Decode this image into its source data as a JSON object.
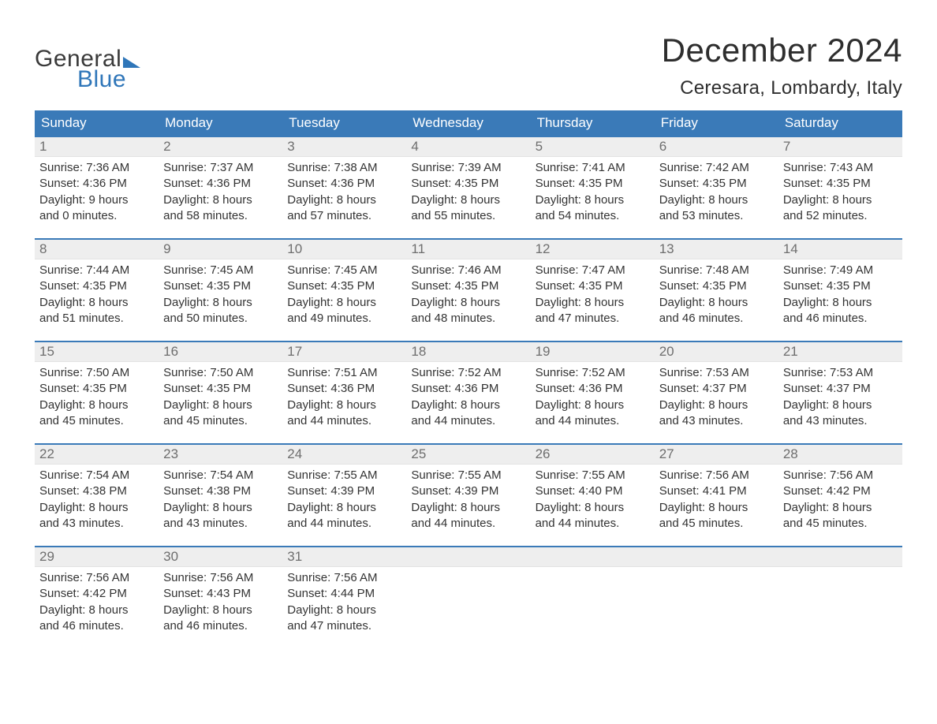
{
  "logo": {
    "line1": "General",
    "line2": "Blue"
  },
  "title": {
    "month": "December 2024",
    "location": "Ceresara, Lombardy, Italy"
  },
  "colors": {
    "header_bg": "#3a7ab8",
    "header_text": "#ffffff",
    "daynum_bg": "#eeeeee",
    "daynum_text": "#6e6e6e",
    "body_text": "#333333",
    "rule": "#3a7ab8",
    "logo_blue": "#2f76b9",
    "page_bg": "#ffffff"
  },
  "weekdays": [
    "Sunday",
    "Monday",
    "Tuesday",
    "Wednesday",
    "Thursday",
    "Friday",
    "Saturday"
  ],
  "weeks": [
    [
      {
        "n": "1",
        "sr": "Sunrise: 7:36 AM",
        "ss": "Sunset: 4:36 PM",
        "d1": "Daylight: 9 hours",
        "d2": "and 0 minutes."
      },
      {
        "n": "2",
        "sr": "Sunrise: 7:37 AM",
        "ss": "Sunset: 4:36 PM",
        "d1": "Daylight: 8 hours",
        "d2": "and 58 minutes."
      },
      {
        "n": "3",
        "sr": "Sunrise: 7:38 AM",
        "ss": "Sunset: 4:36 PM",
        "d1": "Daylight: 8 hours",
        "d2": "and 57 minutes."
      },
      {
        "n": "4",
        "sr": "Sunrise: 7:39 AM",
        "ss": "Sunset: 4:35 PM",
        "d1": "Daylight: 8 hours",
        "d2": "and 55 minutes."
      },
      {
        "n": "5",
        "sr": "Sunrise: 7:41 AM",
        "ss": "Sunset: 4:35 PM",
        "d1": "Daylight: 8 hours",
        "d2": "and 54 minutes."
      },
      {
        "n": "6",
        "sr": "Sunrise: 7:42 AM",
        "ss": "Sunset: 4:35 PM",
        "d1": "Daylight: 8 hours",
        "d2": "and 53 minutes."
      },
      {
        "n": "7",
        "sr": "Sunrise: 7:43 AM",
        "ss": "Sunset: 4:35 PM",
        "d1": "Daylight: 8 hours",
        "d2": "and 52 minutes."
      }
    ],
    [
      {
        "n": "8",
        "sr": "Sunrise: 7:44 AM",
        "ss": "Sunset: 4:35 PM",
        "d1": "Daylight: 8 hours",
        "d2": "and 51 minutes."
      },
      {
        "n": "9",
        "sr": "Sunrise: 7:45 AM",
        "ss": "Sunset: 4:35 PM",
        "d1": "Daylight: 8 hours",
        "d2": "and 50 minutes."
      },
      {
        "n": "10",
        "sr": "Sunrise: 7:45 AM",
        "ss": "Sunset: 4:35 PM",
        "d1": "Daylight: 8 hours",
        "d2": "and 49 minutes."
      },
      {
        "n": "11",
        "sr": "Sunrise: 7:46 AM",
        "ss": "Sunset: 4:35 PM",
        "d1": "Daylight: 8 hours",
        "d2": "and 48 minutes."
      },
      {
        "n": "12",
        "sr": "Sunrise: 7:47 AM",
        "ss": "Sunset: 4:35 PM",
        "d1": "Daylight: 8 hours",
        "d2": "and 47 minutes."
      },
      {
        "n": "13",
        "sr": "Sunrise: 7:48 AM",
        "ss": "Sunset: 4:35 PM",
        "d1": "Daylight: 8 hours",
        "d2": "and 46 minutes."
      },
      {
        "n": "14",
        "sr": "Sunrise: 7:49 AM",
        "ss": "Sunset: 4:35 PM",
        "d1": "Daylight: 8 hours",
        "d2": "and 46 minutes."
      }
    ],
    [
      {
        "n": "15",
        "sr": "Sunrise: 7:50 AM",
        "ss": "Sunset: 4:35 PM",
        "d1": "Daylight: 8 hours",
        "d2": "and 45 minutes."
      },
      {
        "n": "16",
        "sr": "Sunrise: 7:50 AM",
        "ss": "Sunset: 4:35 PM",
        "d1": "Daylight: 8 hours",
        "d2": "and 45 minutes."
      },
      {
        "n": "17",
        "sr": "Sunrise: 7:51 AM",
        "ss": "Sunset: 4:36 PM",
        "d1": "Daylight: 8 hours",
        "d2": "and 44 minutes."
      },
      {
        "n": "18",
        "sr": "Sunrise: 7:52 AM",
        "ss": "Sunset: 4:36 PM",
        "d1": "Daylight: 8 hours",
        "d2": "and 44 minutes."
      },
      {
        "n": "19",
        "sr": "Sunrise: 7:52 AM",
        "ss": "Sunset: 4:36 PM",
        "d1": "Daylight: 8 hours",
        "d2": "and 44 minutes."
      },
      {
        "n": "20",
        "sr": "Sunrise: 7:53 AM",
        "ss": "Sunset: 4:37 PM",
        "d1": "Daylight: 8 hours",
        "d2": "and 43 minutes."
      },
      {
        "n": "21",
        "sr": "Sunrise: 7:53 AM",
        "ss": "Sunset: 4:37 PM",
        "d1": "Daylight: 8 hours",
        "d2": "and 43 minutes."
      }
    ],
    [
      {
        "n": "22",
        "sr": "Sunrise: 7:54 AM",
        "ss": "Sunset: 4:38 PM",
        "d1": "Daylight: 8 hours",
        "d2": "and 43 minutes."
      },
      {
        "n": "23",
        "sr": "Sunrise: 7:54 AM",
        "ss": "Sunset: 4:38 PM",
        "d1": "Daylight: 8 hours",
        "d2": "and 43 minutes."
      },
      {
        "n": "24",
        "sr": "Sunrise: 7:55 AM",
        "ss": "Sunset: 4:39 PM",
        "d1": "Daylight: 8 hours",
        "d2": "and 44 minutes."
      },
      {
        "n": "25",
        "sr": "Sunrise: 7:55 AM",
        "ss": "Sunset: 4:39 PM",
        "d1": "Daylight: 8 hours",
        "d2": "and 44 minutes."
      },
      {
        "n": "26",
        "sr": "Sunrise: 7:55 AM",
        "ss": "Sunset: 4:40 PM",
        "d1": "Daylight: 8 hours",
        "d2": "and 44 minutes."
      },
      {
        "n": "27",
        "sr": "Sunrise: 7:56 AM",
        "ss": "Sunset: 4:41 PM",
        "d1": "Daylight: 8 hours",
        "d2": "and 45 minutes."
      },
      {
        "n": "28",
        "sr": "Sunrise: 7:56 AM",
        "ss": "Sunset: 4:42 PM",
        "d1": "Daylight: 8 hours",
        "d2": "and 45 minutes."
      }
    ],
    [
      {
        "n": "29",
        "sr": "Sunrise: 7:56 AM",
        "ss": "Sunset: 4:42 PM",
        "d1": "Daylight: 8 hours",
        "d2": "and 46 minutes."
      },
      {
        "n": "30",
        "sr": "Sunrise: 7:56 AM",
        "ss": "Sunset: 4:43 PM",
        "d1": "Daylight: 8 hours",
        "d2": "and 46 minutes."
      },
      {
        "n": "31",
        "sr": "Sunrise: 7:56 AM",
        "ss": "Sunset: 4:44 PM",
        "d1": "Daylight: 8 hours",
        "d2": "and 47 minutes."
      },
      null,
      null,
      null,
      null
    ]
  ]
}
